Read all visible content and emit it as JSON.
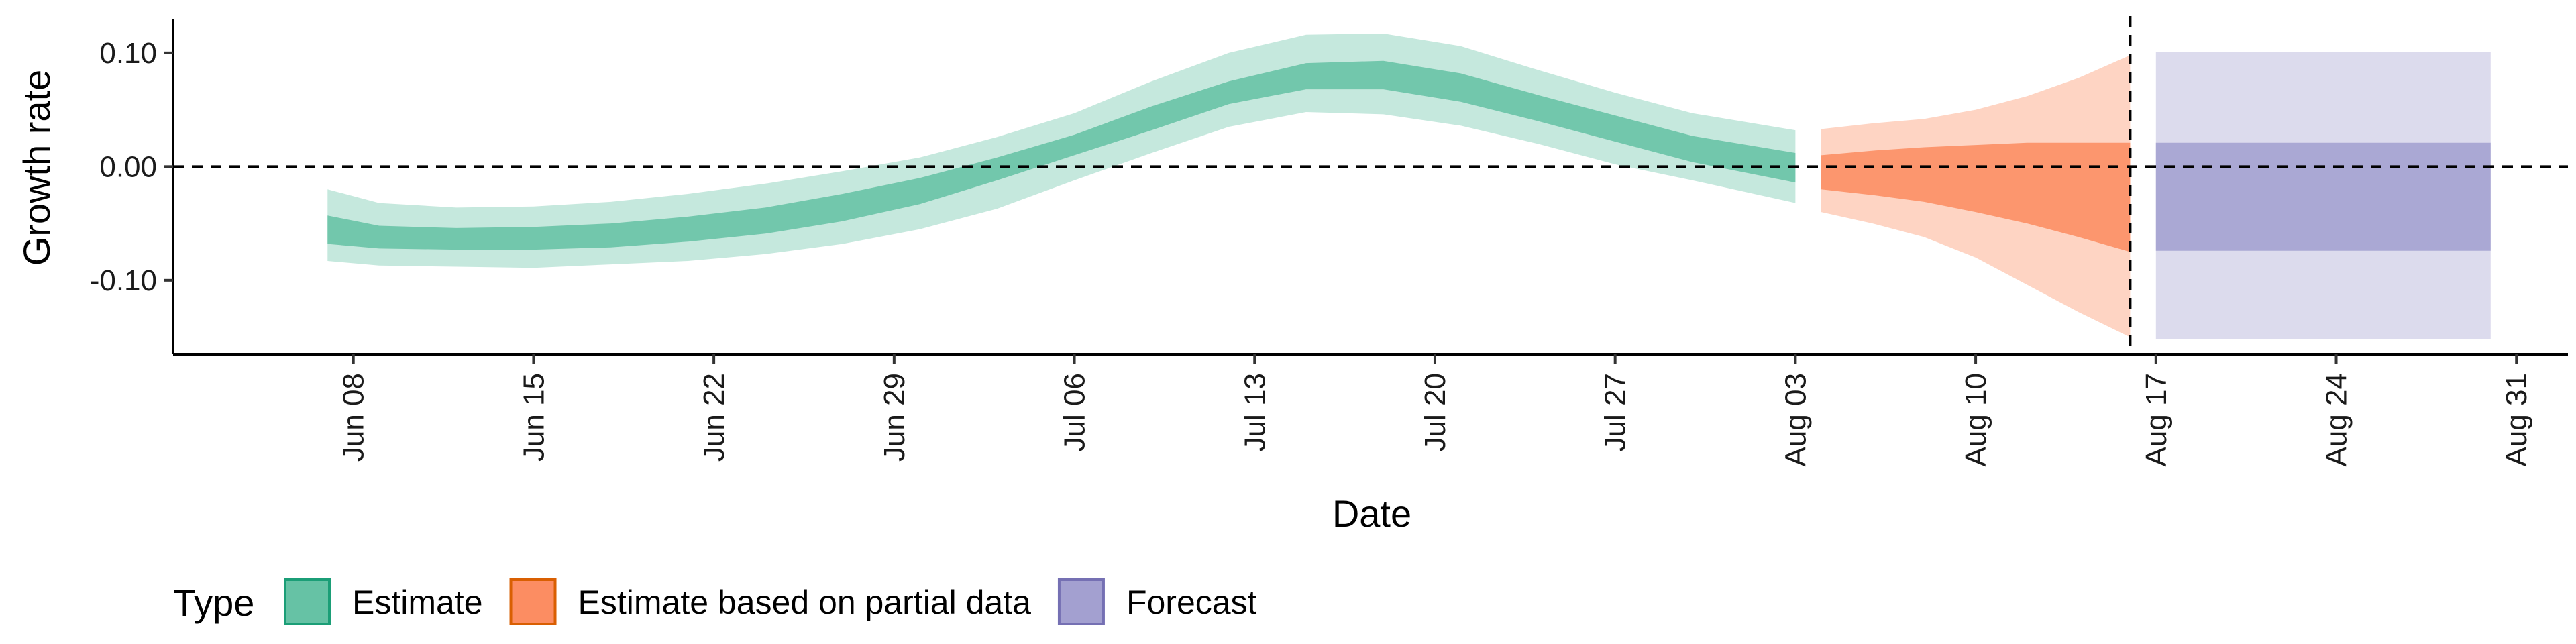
{
  "chart_data": {
    "type": "area",
    "xlabel": "Date",
    "ylabel": "Growth rate",
    "x_range": [
      "2020-06-01",
      "2020-09-02"
    ],
    "ylim": [
      -0.165,
      0.13
    ],
    "x_ticks": [
      {
        "date": "2020-06-08",
        "label": "Jun 08"
      },
      {
        "date": "2020-06-15",
        "label": "Jun 15"
      },
      {
        "date": "2020-06-22",
        "label": "Jun 22"
      },
      {
        "date": "2020-06-29",
        "label": "Jun 29"
      },
      {
        "date": "2020-07-06",
        "label": "Jul 06"
      },
      {
        "date": "2020-07-13",
        "label": "Jul 13"
      },
      {
        "date": "2020-07-20",
        "label": "Jul 20"
      },
      {
        "date": "2020-07-27",
        "label": "Jul 27"
      },
      {
        "date": "2020-08-03",
        "label": "Aug 03"
      },
      {
        "date": "2020-08-10",
        "label": "Aug 10"
      },
      {
        "date": "2020-08-17",
        "label": "Aug 17"
      },
      {
        "date": "2020-08-24",
        "label": "Aug 24"
      },
      {
        "date": "2020-08-31",
        "label": "Aug 31"
      }
    ],
    "y_ticks": [
      {
        "value": 0.1,
        "label": "0.10"
      },
      {
        "value": 0.0,
        "label": "0.00"
      },
      {
        "value": -0.1,
        "label": "-0.10"
      }
    ],
    "reference_lines": {
      "horizontal_y": 0.0,
      "vertical_date": "2020-08-16"
    },
    "grid": false,
    "legend": {
      "title": "Type",
      "position": "bottom",
      "entries": [
        {
          "label": "Estimate",
          "fill": "#66c2a5",
          "border": "#1b9e77"
        },
        {
          "label": "Estimate based on partial data",
          "fill": "#fc8d62",
          "border": "#d95f02"
        },
        {
          "label": "Forecast",
          "fill": "#a3a0d0",
          "border": "#7570b3"
        }
      ]
    },
    "series": [
      {
        "name": "Estimate",
        "color": "#66c2a5",
        "x": [
          "2020-06-07",
          "2020-06-09",
          "2020-06-12",
          "2020-06-15",
          "2020-06-18",
          "2020-06-21",
          "2020-06-24",
          "2020-06-27",
          "2020-06-30",
          "2020-07-03",
          "2020-07-06",
          "2020-07-09",
          "2020-07-12",
          "2020-07-15",
          "2020-07-18",
          "2020-07-21",
          "2020-07-24",
          "2020-07-27",
          "2020-07-30",
          "2020-08-03"
        ],
        "lower_90": [
          -0.083,
          -0.087,
          -0.088,
          -0.089,
          -0.086,
          -0.083,
          -0.077,
          -0.068,
          -0.055,
          -0.037,
          -0.012,
          0.012,
          0.035,
          0.048,
          0.046,
          0.036,
          0.02,
          0.002,
          -0.012,
          -0.032
        ],
        "lower_50": [
          -0.068,
          -0.072,
          -0.073,
          -0.073,
          -0.071,
          -0.066,
          -0.059,
          -0.048,
          -0.033,
          -0.012,
          0.01,
          0.032,
          0.055,
          0.068,
          0.068,
          0.057,
          0.04,
          0.022,
          0.004,
          -0.014
        ],
        "upper_50": [
          -0.043,
          -0.052,
          -0.054,
          -0.053,
          -0.05,
          -0.044,
          -0.036,
          -0.024,
          -0.01,
          0.008,
          0.028,
          0.053,
          0.075,
          0.091,
          0.093,
          0.082,
          0.063,
          0.045,
          0.027,
          0.012
        ],
        "upper_90": [
          -0.02,
          -0.032,
          -0.036,
          -0.035,
          -0.031,
          -0.024,
          -0.015,
          -0.004,
          0.008,
          0.026,
          0.047,
          0.075,
          0.1,
          0.116,
          0.117,
          0.106,
          0.085,
          0.065,
          0.047,
          0.032
        ]
      },
      {
        "name": "Estimate based on partial data",
        "color": "#fc8d62",
        "x": [
          "2020-08-04",
          "2020-08-06",
          "2020-08-08",
          "2020-08-10",
          "2020-08-12",
          "2020-08-14",
          "2020-08-16"
        ],
        "lower_90": [
          -0.04,
          -0.05,
          -0.062,
          -0.08,
          -0.104,
          -0.128,
          -0.15
        ],
        "lower_50": [
          -0.02,
          -0.025,
          -0.031,
          -0.04,
          -0.05,
          -0.062,
          -0.075
        ],
        "upper_50": [
          0.01,
          0.014,
          0.017,
          0.019,
          0.021,
          0.021,
          0.021
        ],
        "upper_90": [
          0.033,
          0.038,
          0.042,
          0.05,
          0.062,
          0.078,
          0.098
        ]
      },
      {
        "name": "Forecast",
        "color": "#a3a0d0",
        "x": [
          "2020-08-17",
          "2020-08-30"
        ],
        "lower_90": [
          -0.152,
          -0.152
        ],
        "lower_50": [
          -0.074,
          -0.074
        ],
        "upper_50": [
          0.021,
          0.021
        ],
        "upper_90": [
          0.101,
          0.101
        ]
      }
    ]
  }
}
